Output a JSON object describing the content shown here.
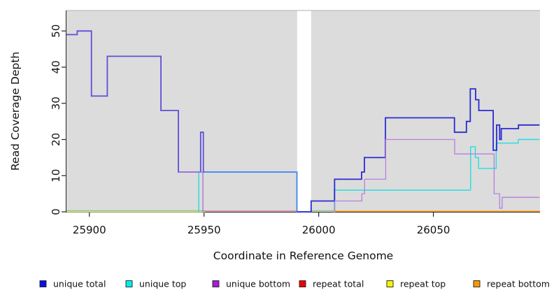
{
  "figure": {
    "xlabel": "Coordinate in Reference Genome",
    "ylabel": "Read Coverage Depth"
  },
  "chart_data": {
    "type": "line",
    "subtype": "step-coverage-plot",
    "title": "",
    "xlabel": "Coordinate in Reference Genome",
    "ylabel": "Read Coverage Depth",
    "x_range": [
      25890,
      26096.5
    ],
    "y_range": [
      0,
      55.7
    ],
    "x_ticks": [
      25900,
      25950,
      26000,
      26050
    ],
    "y_ticks": [
      0,
      10,
      20,
      30,
      40,
      50
    ],
    "grid": "off",
    "panel_bg": "#dcdcdc",
    "gap_band": {
      "from": 25990.6,
      "to": 25996.7,
      "color": "#ffffff"
    },
    "legend": {
      "position": "bottom",
      "items": [
        {
          "label": "unique total",
          "color": "#0d0de8"
        },
        {
          "label": "unique top",
          "color": "#00eeee"
        },
        {
          "label": "unique bottom",
          "color": "#a61ddb"
        },
        {
          "label": "repeat total",
          "color": "#ee0000"
        },
        {
          "label": "repeat top",
          "color": "#f5f500"
        },
        {
          "label": "repeat bottom",
          "color": "#f59b00"
        }
      ]
    },
    "series": [
      {
        "name": "unique total",
        "steps": [
          [
            25890,
            49
          ],
          [
            25895,
            50
          ],
          [
            25901,
            32
          ],
          [
            25908,
            43
          ],
          [
            25931,
            28
          ],
          [
            25939,
            11
          ],
          [
            25948.5,
            22
          ],
          [
            25949.7,
            11
          ],
          [
            25990.5,
            0
          ],
          [
            25996.7,
            3
          ],
          [
            26007,
            9
          ],
          [
            26019,
            11
          ],
          [
            26020,
            15
          ],
          [
            26029,
            26
          ],
          [
            26059,
            22
          ],
          [
            26064.5,
            25
          ],
          [
            26066,
            34
          ],
          [
            26068,
            31
          ],
          [
            26070,
            28
          ],
          [
            26076,
            17
          ],
          [
            26077.5,
            24
          ],
          [
            26079,
            20
          ],
          [
            26079.7,
            23
          ],
          [
            26087,
            24
          ]
        ]
      },
      {
        "name": "unique top",
        "steps": [
          [
            25890,
            0
          ],
          [
            25947.7,
            11
          ],
          [
            25990.3,
            0
          ],
          [
            26007,
            6
          ],
          [
            26066,
            18
          ],
          [
            26068,
            15
          ],
          [
            26070,
            12
          ],
          [
            26077.5,
            19
          ],
          [
            26087,
            20
          ]
        ]
      },
      {
        "name": "unique bottom",
        "steps": [
          [
            25890,
            0
          ],
          [
            25939,
            11
          ],
          [
            25949.5,
            0
          ],
          [
            26007,
            3
          ],
          [
            26019,
            5
          ],
          [
            26020,
            9
          ],
          [
            26029,
            20
          ],
          [
            26059,
            16
          ],
          [
            26076.5,
            5
          ],
          [
            26079,
            1
          ],
          [
            26080,
            4
          ]
        ]
      },
      {
        "name": "repeat total",
        "steps": [
          [
            25890,
            0
          ]
        ]
      },
      {
        "name": "repeat top",
        "steps": [
          [
            25890,
            0
          ]
        ]
      },
      {
        "name": "repeat bottom",
        "steps": [
          [
            25890,
            0
          ]
        ]
      }
    ],
    "render_lines": [
      {
        "name": "repeat-top-line",
        "color": "#e3e37a",
        "width": 1.2,
        "dy": 0,
        "end": 25950.5,
        "points": [
          [
            25890,
            0
          ]
        ]
      },
      {
        "name": "overlap-blend-left",
        "color": "#8bc98b",
        "width": 1.3,
        "dy": -1.6,
        "end": 25950.5,
        "points": [
          [
            25890,
            0
          ]
        ]
      },
      {
        "name": "overlap-blend-mid",
        "color": "#8bc98b",
        "width": 1.3,
        "dy": -1.6,
        "end": 26007,
        "points": [
          [
            25996.8,
            0
          ]
        ]
      },
      {
        "name": "repeat-total-line",
        "color": "#e0679f",
        "width": 1.2,
        "dy": -1.2,
        "end": 25990.4,
        "points": [
          [
            25950,
            0
          ]
        ]
      },
      {
        "name": "unique-top-drop",
        "color": "#26dede",
        "width": 1.4,
        "dy": 0,
        "end": 25990.2,
        "points": [
          [
            25947.6,
            0
          ],
          [
            25947.7,
            11
          ]
        ]
      },
      {
        "name": "unique-top-right",
        "color": "#26dede",
        "width": 1.4,
        "dy": 0,
        "end": 26096.3,
        "points": [
          [
            26006.7,
            0
          ],
          [
            26006.8,
            6
          ],
          [
            26066.2,
            18
          ],
          [
            26068.3,
            15
          ],
          [
            26069.7,
            12
          ],
          [
            26077.4,
            19
          ],
          [
            26087,
            20
          ]
        ]
      },
      {
        "name": "unique-total-left",
        "color": "#5c4fd6",
        "width": 1.8,
        "dy": 0,
        "end": 25950.3,
        "points": [
          [
            25890,
            49
          ],
          [
            25894.7,
            50
          ],
          [
            25900.9,
            32
          ],
          [
            25907.8,
            43
          ],
          [
            25931.2,
            28
          ],
          [
            25938.8,
            11
          ],
          [
            25948.5,
            22
          ],
          [
            25949.7,
            11
          ]
        ]
      },
      {
        "name": "unique-total-mid",
        "color": "#3f86ee",
        "width": 1.8,
        "dy": 0,
        "end": 25990.6,
        "points": [
          [
            25950.1,
            11
          ],
          [
            25990.5,
            0
          ]
        ]
      },
      {
        "name": "unique-total-right",
        "color": "#2b2bd0",
        "width": 1.8,
        "dy": 0,
        "end": 26096.3,
        "points": [
          [
            25990.6,
            0
          ],
          [
            25996.7,
            3
          ],
          [
            26006.9,
            9
          ],
          [
            26018.7,
            11
          ],
          [
            26019.9,
            15
          ],
          [
            26029.1,
            26
          ],
          [
            26059.2,
            22
          ],
          [
            26064.4,
            25
          ],
          [
            26066.1,
            34
          ],
          [
            26068.4,
            31
          ],
          [
            26069.8,
            28
          ],
          [
            26076.1,
            17
          ],
          [
            26077.6,
            24
          ],
          [
            26078.9,
            20
          ],
          [
            26079.6,
            23
          ],
          [
            26087.1,
            24
          ]
        ]
      },
      {
        "name": "unique-bottom-left",
        "color": "#a86fd8",
        "width": 1.3,
        "dy": 0,
        "end": 25949.6,
        "points": [
          [
            25938.9,
            11
          ],
          [
            25949.5,
            0
          ]
        ]
      },
      {
        "name": "unique-bottom-right",
        "color": "#b77fde",
        "width": 1.3,
        "dy": 0,
        "end": 26096.3,
        "points": [
          [
            26006.9,
            0
          ],
          [
            26007,
            3
          ],
          [
            26018.8,
            5
          ],
          [
            26020,
            9
          ],
          [
            26029.2,
            20
          ],
          [
            26059.3,
            16
          ],
          [
            26076.5,
            5
          ],
          [
            26078.9,
            1
          ],
          [
            26080,
            4
          ]
        ]
      },
      {
        "name": "repeat-bottom-line",
        "color": "#ff9e1b",
        "width": 1.6,
        "dy": -0.8,
        "end": 26096.5,
        "points": [
          [
            26006.6,
            0
          ]
        ]
      }
    ]
  }
}
